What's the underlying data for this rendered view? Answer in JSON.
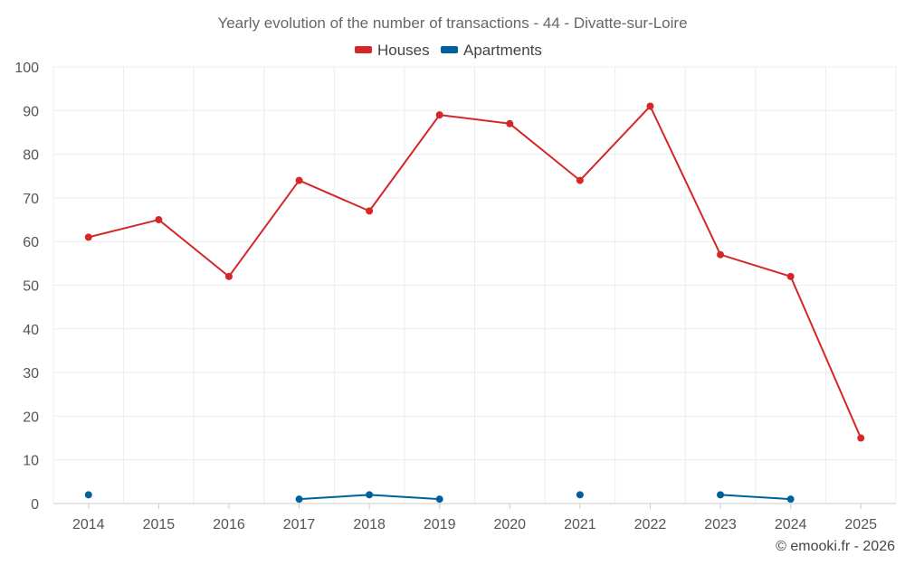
{
  "chart_data": {
    "type": "line",
    "title": "Yearly evolution of the number of transactions - 44 - Divatte-sur-Loire",
    "xlabel": "",
    "ylabel": "",
    "categories": [
      "2014",
      "2015",
      "2016",
      "2017",
      "2018",
      "2019",
      "2020",
      "2021",
      "2022",
      "2023",
      "2024",
      "2025"
    ],
    "ylim": [
      0,
      100
    ],
    "yticks": [
      0,
      10,
      20,
      30,
      40,
      50,
      60,
      70,
      80,
      90,
      100
    ],
    "grid": true,
    "legend_position": "top-center",
    "series": [
      {
        "name": "Houses",
        "color": "#d62728",
        "values": [
          61,
          65,
          52,
          74,
          67,
          89,
          87,
          74,
          91,
          57,
          52,
          15
        ]
      },
      {
        "name": "Apartments",
        "color": "#00609c",
        "values": [
          2,
          null,
          null,
          1,
          2,
          1,
          null,
          2,
          null,
          2,
          1,
          null
        ]
      }
    ]
  },
  "credit": "© emooki.fr - 2026"
}
